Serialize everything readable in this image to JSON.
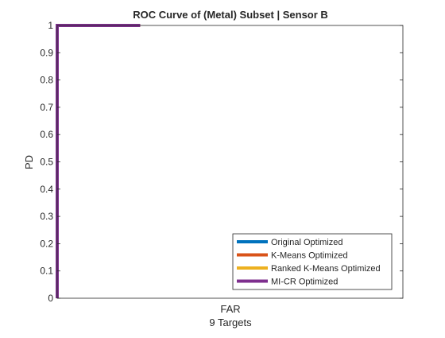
{
  "chart_data": {
    "type": "line",
    "title": "ROC Curve of (Metal) Subset | Sensor B",
    "xlabel": "FAR",
    "xlabel_sub": "9 Targets",
    "ylabel": "PD",
    "xlim": [
      0,
      1
    ],
    "ylim": [
      0,
      1
    ],
    "x_ticks": [],
    "y_ticks": [
      {
        "value": 0,
        "label": "0"
      },
      {
        "value": 0.1,
        "label": "0.1"
      },
      {
        "value": 0.2,
        "label": "0.2"
      },
      {
        "value": 0.3,
        "label": "0.3"
      },
      {
        "value": 0.4,
        "label": "0.4"
      },
      {
        "value": 0.5,
        "label": "0.5"
      },
      {
        "value": 0.6,
        "label": "0.6"
      },
      {
        "value": 0.7,
        "label": "0.7"
      },
      {
        "value": 0.8,
        "label": "0.8"
      },
      {
        "value": 0.9,
        "label": "0.9"
      },
      {
        "value": 1,
        "label": "1"
      }
    ],
    "grid": false,
    "legend_position": "bottom-right",
    "series": [
      {
        "name": "Original Optimized",
        "color": "#0072BD",
        "x": [
          0,
          0,
          0.24
        ],
        "y": [
          0,
          1,
          1
        ]
      },
      {
        "name": "K-Means Optimized",
        "color": "#D95319",
        "x": [
          0,
          0,
          0.24
        ],
        "y": [
          0,
          1,
          1
        ]
      },
      {
        "name": "Ranked K-Means Optimized",
        "color": "#EDB120",
        "x": [
          0,
          0,
          0.24
        ],
        "y": [
          0,
          1,
          1
        ]
      },
      {
        "name": "MI-CR Optimized",
        "color": "#7E2F8E",
        "x": [
          0,
          0,
          0.24
        ],
        "y": [
          0,
          1,
          1
        ]
      }
    ]
  }
}
